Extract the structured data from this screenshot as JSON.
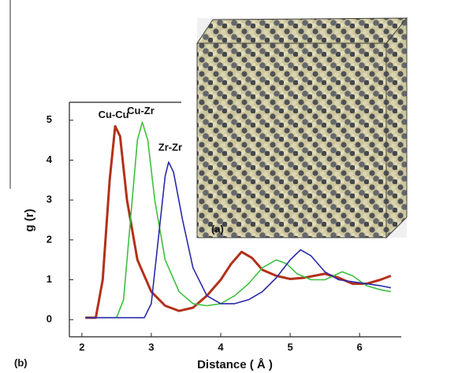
{
  "panel_a": "(a)",
  "panel_b": "(b)",
  "chart_data": {
    "type": "line",
    "xlabel": "Distance ( Å )",
    "ylabel": "g (r)",
    "xlim": [
      1.82,
      6.6
    ],
    "ylim": [
      -0.43,
      5.45
    ],
    "xticks": [
      2,
      3,
      4,
      5,
      6
    ],
    "yticks": [
      0,
      1,
      2,
      3,
      4,
      5
    ],
    "series": [
      {
        "name": "Cu-Cu",
        "color": "#b3301a",
        "x": [
          2.05,
          2.2,
          2.3,
          2.4,
          2.48,
          2.55,
          2.65,
          2.8,
          3.0,
          3.2,
          3.4,
          3.6,
          3.8,
          4.0,
          4.15,
          4.3,
          4.45,
          4.6,
          4.8,
          5.0,
          5.2,
          5.5,
          5.7,
          5.9,
          6.1,
          6.3,
          6.45
        ],
        "values": [
          0.05,
          0.05,
          1,
          3.5,
          4.85,
          4.6,
          3,
          1.5,
          0.7,
          0.35,
          0.22,
          0.3,
          0.6,
          1.0,
          1.4,
          1.7,
          1.55,
          1.25,
          1.1,
          1.02,
          1.05,
          1.15,
          1.05,
          0.9,
          0.9,
          1.0,
          1.1
        ]
      },
      {
        "name": "Cu-Zr",
        "color": "#3fbf3f",
        "x": [
          2.05,
          2.5,
          2.6,
          2.7,
          2.8,
          2.87,
          2.95,
          3.05,
          3.2,
          3.4,
          3.6,
          3.8,
          4.0,
          4.2,
          4.4,
          4.6,
          4.8,
          4.95,
          5.1,
          5.3,
          5.5,
          5.75,
          5.9,
          6.1,
          6.3,
          6.45
        ],
        "values": [
          0.05,
          0.05,
          0.5,
          2.5,
          4.5,
          4.95,
          4.5,
          3,
          1.5,
          0.7,
          0.4,
          0.35,
          0.4,
          0.6,
          0.9,
          1.3,
          1.5,
          1.4,
          1.15,
          1.0,
          1.0,
          1.2,
          1.1,
          0.85,
          0.75,
          0.7
        ]
      },
      {
        "name": "Zr-Zr",
        "color": "#2a2aa8",
        "x": [
          2.05,
          2.9,
          3.0,
          3.1,
          3.2,
          3.25,
          3.32,
          3.45,
          3.6,
          3.8,
          4.0,
          4.2,
          4.4,
          4.6,
          4.8,
          5.0,
          5.15,
          5.3,
          5.5,
          5.7,
          5.9,
          6.1,
          6.3,
          6.45
        ],
        "values": [
          0.05,
          0.05,
          0.4,
          2,
          3.6,
          3.95,
          3.7,
          2.5,
          1.3,
          0.6,
          0.4,
          0.4,
          0.5,
          0.7,
          1.05,
          1.5,
          1.75,
          1.6,
          1.2,
          1.0,
          0.95,
          0.9,
          0.85,
          0.8
        ]
      }
    ]
  }
}
